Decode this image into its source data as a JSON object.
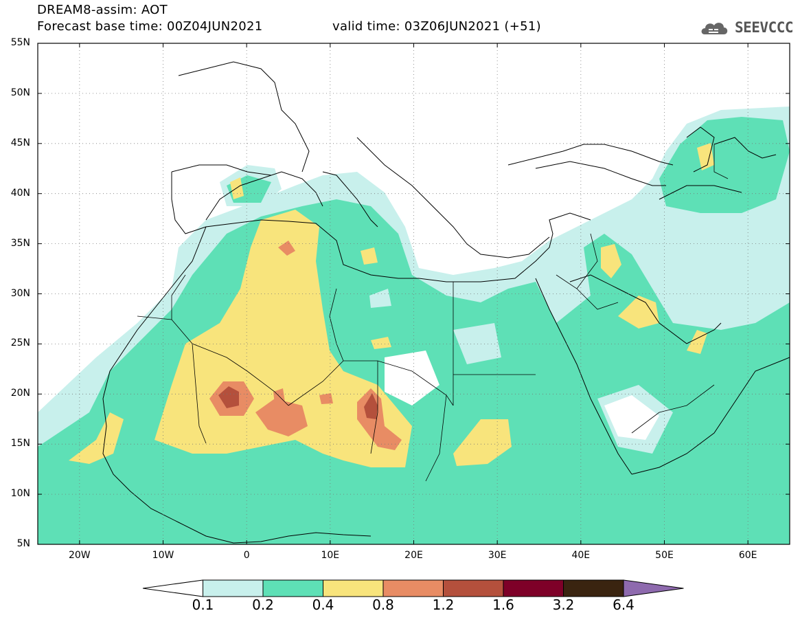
{
  "header": {
    "model_title": "DREAM8-assim: AOT",
    "base_time": "Forecast base time: 00Z04JUN2021",
    "valid_time": "valid time: 03Z06JUN2021 (+51)",
    "logo_text": "SEEVCCC"
  },
  "map": {
    "lon_range": [
      -25,
      65
    ],
    "lat_range": [
      5,
      55
    ],
    "lat_ticks": [
      "55N",
      "50N",
      "45N",
      "40N",
      "35N",
      "30N",
      "25N",
      "20N",
      "15N",
      "10N",
      "5N"
    ],
    "lon_ticks": [
      "20W",
      "10W",
      "0",
      "10E",
      "20E",
      "30E",
      "40E",
      "50E",
      "60E"
    ],
    "lat_tick_values": [
      55,
      50,
      45,
      40,
      35,
      30,
      25,
      20,
      15,
      10,
      5
    ],
    "lon_tick_values": [
      -20,
      -10,
      0,
      10,
      20,
      30,
      40,
      50,
      60
    ],
    "gridlines": "dotted"
  },
  "colorbar": {
    "levels": [
      "0.1",
      "0.2",
      "0.4",
      "0.8",
      "1.2",
      "1.6",
      "3.2",
      "6.4"
    ],
    "colors": [
      "#c8f0ec",
      "#5ee0b6",
      "#f8e47c",
      "#e88c64",
      "#b4503c",
      "#7e0028",
      "#3a2410",
      "#8e6aae"
    ]
  }
}
